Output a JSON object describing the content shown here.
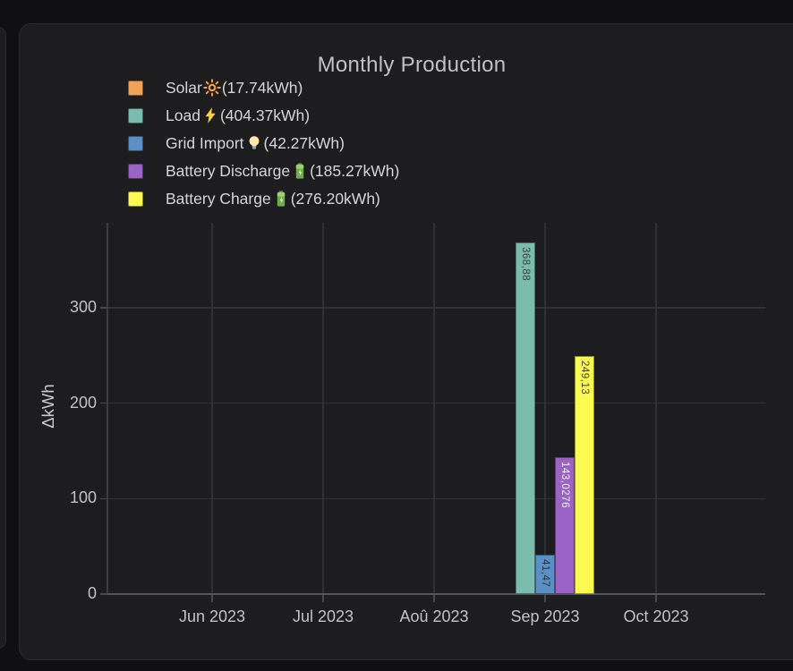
{
  "panel": {
    "title": "Monthly Production"
  },
  "chart_data": {
    "type": "bar",
    "title": "Monthly Production",
    "ylabel": "ΔkWh",
    "xlabel": "",
    "categories": [
      "Jun 2023",
      "Jul 2023",
      "Aoû 2023",
      "Sep 2023",
      "Oct 2023"
    ],
    "y_ticks": [
      0,
      100,
      200,
      300
    ],
    "ylim": [
      0,
      389
    ],
    "grid": true,
    "legend_position": "top-left",
    "series": [
      {
        "name": "Solar",
        "emoji": "☀️",
        "icon": "sun-icon",
        "total_display": "(17.74kWh)",
        "color": "#f1a354",
        "values": [
          null,
          null,
          null,
          null,
          null
        ],
        "bar_labels": [
          null,
          null,
          null,
          null,
          null
        ],
        "bar_label_color": "#3a3a3a"
      },
      {
        "name": "Load",
        "emoji": "⚡",
        "icon": "lightning-icon",
        "total_display": "(404.37kWh)",
        "color": "#7abcae",
        "values": [
          null,
          null,
          null,
          368.88,
          null
        ],
        "bar_labels": [
          null,
          null,
          null,
          "368,88",
          null
        ],
        "bar_label_color": "#3b4143"
      },
      {
        "name": "Grid Import",
        "emoji": "💡",
        "icon": "bulb-icon",
        "total_display": "(42.27kWh)",
        "color": "#5a90c8",
        "values": [
          null,
          null,
          null,
          41.47,
          null
        ],
        "bar_labels": [
          null,
          null,
          null,
          "41,47",
          null
        ],
        "bar_label_color": "#2f3338"
      },
      {
        "name": "Battery Discharge",
        "emoji": "🔋",
        "icon": "battery-icon",
        "total_display": "(185.27kWh)",
        "color": "#9a63c5",
        "values": [
          null,
          null,
          null,
          143.0276,
          null
        ],
        "bar_labels": [
          null,
          null,
          null,
          "143,0276",
          null
        ],
        "bar_label_color": "#f2f2f2"
      },
      {
        "name": "Battery Charge",
        "emoji": "🔋",
        "icon": "battery-icon",
        "total_display": "(276.20kWh)",
        "color": "#fbfa4f",
        "values": [
          null,
          null,
          null,
          249.13,
          null
        ],
        "bar_labels": [
          null,
          null,
          null,
          "249,13",
          null
        ],
        "bar_label_color": "#45452f"
      }
    ]
  }
}
